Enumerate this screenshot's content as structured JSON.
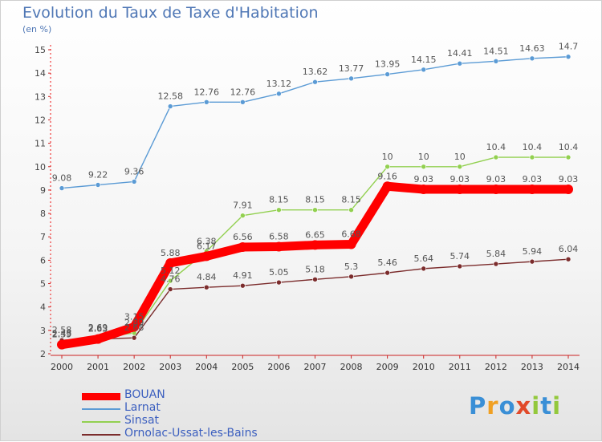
{
  "chart_data": {
    "type": "line",
    "title": "Evolution du Taux de Taxe d'Habitation",
    "subtitle": "(en %)",
    "x": [
      "2000",
      "2001",
      "2002",
      "2003",
      "2004",
      "2005",
      "2006",
      "2007",
      "2008",
      "2009",
      "2010",
      "2011",
      "2012",
      "2013",
      "2014"
    ],
    "ylim": [
      2,
      15
    ],
    "yticks": [
      2,
      3,
      4,
      5,
      6,
      7,
      8,
      9,
      10,
      11,
      12,
      13,
      14,
      15
    ],
    "series": [
      {
        "name": "BOUAN",
        "color": "#ff0000",
        "values": [
          2.39,
          2.63,
          3.15,
          5.88,
          6.17,
          6.56,
          6.58,
          6.65,
          6.68,
          9.16,
          9.03,
          9.03,
          9.03,
          9.03,
          9.03
        ]
      },
      {
        "name": "Larnat",
        "color": "#5b9bd5",
        "values": [
          9.08,
          9.22,
          9.36,
          12.58,
          12.76,
          12.76,
          13.12,
          13.62,
          13.77,
          13.95,
          14.15,
          14.41,
          14.51,
          14.63,
          14.7
        ]
      },
      {
        "name": "Sinsat",
        "color": "#92d050",
        "values": [
          2.43,
          2.69,
          2.89,
          5.12,
          6.38,
          7.91,
          8.15,
          8.15,
          8.15,
          10,
          10,
          10,
          10.4,
          10.4,
          10.4
        ]
      },
      {
        "name": "Ornolac-Ussat-les-Bains",
        "color": "#7b2c2c",
        "values": [
          2.58,
          2.63,
          2.68,
          4.76,
          4.84,
          4.91,
          5.05,
          5.18,
          5.3,
          5.46,
          5.64,
          5.74,
          5.84,
          5.94,
          6.04
        ]
      }
    ],
    "labels": {
      "BOUAN": [
        "2.39",
        "2.63",
        "3.15",
        "5.88",
        "6.17",
        "6.56",
        "6.58",
        "6.65",
        "6.68",
        "9.16",
        "9.03",
        "9.03",
        "9.03",
        "9.03",
        "9.03"
      ],
      "Larnat": [
        "9.08",
        "9.22",
        "9.36",
        "12.58",
        "12.76",
        "12.76",
        "13.12",
        "13.62",
        "13.77",
        "13.95",
        "14.15",
        "14.41",
        "14.51",
        "14.63",
        "14.7"
      ],
      "Sinsat": [
        "2.43",
        "2.69",
        "2.89",
        "5.12",
        "6.38",
        "7.91",
        "8.15",
        "8.15",
        "8.15",
        "10",
        "10",
        "10",
        "10.4",
        "10.4",
        "10.4"
      ],
      "Ornolac-Ussat-les-Bains": [
        "2.58",
        "2.63",
        "2.68",
        "4.76",
        "4.84",
        "4.91",
        "5.05",
        "5.18",
        "5.3",
        "5.46",
        "5.64",
        "5.74",
        "5.84",
        "5.94",
        "6.04"
      ]
    },
    "grid": false,
    "legend_position": "bottom-left"
  },
  "logo": {
    "letters": [
      "P",
      "r",
      "o",
      "x",
      "i",
      "t",
      "i"
    ],
    "colors": [
      "#3a8fd6",
      "#f0a023",
      "#3a8fd6",
      "#e14a2a",
      "#93c83c",
      "#3a8fd6",
      "#93c83c"
    ]
  }
}
